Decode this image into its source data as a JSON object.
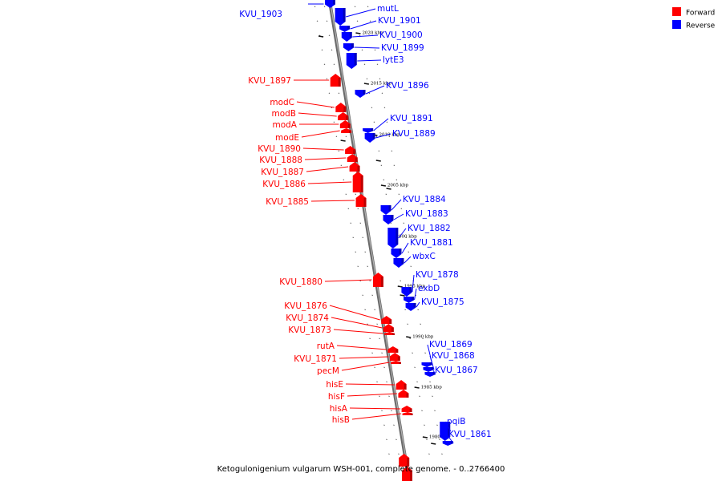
{
  "caption": "Ketogulonigenium vulgarum WSH-001, complete genome. - 0..2766400",
  "legend": [
    {
      "label": "Forward",
      "color": "#ff0000"
    },
    {
      "label": "Reverse",
      "color": "#0000ff"
    }
  ],
  "colors": {
    "forward": "#ff0000",
    "reverse": "#0000ff",
    "backbone": "#808080"
  },
  "scale_ticks": [
    "2020 kbp",
    "2015 kbp",
    "2010 kbp",
    "2005 kbp",
    "2000 kbp",
    "1995 kbp",
    "1990 kbp",
    "1985 kbp",
    "1980 kbp"
  ],
  "reverse_genes": [
    {
      "name": "KVU_1903"
    },
    {
      "name": "mutL"
    },
    {
      "name": "KVU_1901"
    },
    {
      "name": "KVU_1900"
    },
    {
      "name": "KVU_1899"
    },
    {
      "name": "lytE3"
    },
    {
      "name": "KVU_1896"
    },
    {
      "name": "KVU_1891"
    },
    {
      "name": "KVU_1889"
    },
    {
      "name": "KVU_1884"
    },
    {
      "name": "KVU_1883"
    },
    {
      "name": "KVU_1882"
    },
    {
      "name": "KVU_1881"
    },
    {
      "name": "wbxC"
    },
    {
      "name": "KVU_1878"
    },
    {
      "name": "exbD"
    },
    {
      "name": "KVU_1875"
    },
    {
      "name": "KVU_1869"
    },
    {
      "name": "KVU_1868"
    },
    {
      "name": "KVU_1867"
    },
    {
      "name": "pqiB"
    },
    {
      "name": "KVU_1861"
    }
  ],
  "forward_genes": [
    {
      "name": "KVU_1897"
    },
    {
      "name": "modC"
    },
    {
      "name": "modB"
    },
    {
      "name": "modA"
    },
    {
      "name": "modE"
    },
    {
      "name": "KVU_1890"
    },
    {
      "name": "KVU_1888"
    },
    {
      "name": "KVU_1887"
    },
    {
      "name": "KVU_1886"
    },
    {
      "name": "KVU_1885"
    },
    {
      "name": "KVU_1880"
    },
    {
      "name": "KVU_1876"
    },
    {
      "name": "KVU_1874"
    },
    {
      "name": "KVU_1873"
    },
    {
      "name": "rutA"
    },
    {
      "name": "KVU_1871"
    },
    {
      "name": "pecM"
    },
    {
      "name": "hisE"
    },
    {
      "name": "hisF"
    },
    {
      "name": "hisA"
    },
    {
      "name": "hisB"
    }
  ]
}
